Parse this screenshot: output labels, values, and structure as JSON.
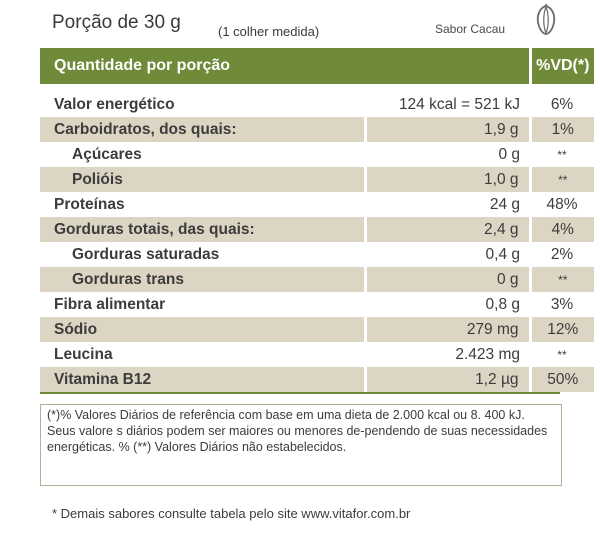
{
  "header": {
    "portion": "Porção de 30 g",
    "portion_detail": "(1 colher medida)",
    "flavor": "Sabor Cacau",
    "flavor_icon": "cacao-pod-icon"
  },
  "table": {
    "head_label": "Quantidade por porção",
    "head_vd": "%VD(*)",
    "rows": [
      {
        "label": "Valor energético",
        "amount": "124 kcal = 521 kJ",
        "vd": "6%"
      },
      {
        "label": "Carboidratos, dos quais:",
        "amount": "1,9 g",
        "vd": "1%"
      },
      {
        "label": "Açúcares",
        "amount": "0 g",
        "vd": "**"
      },
      {
        "label": "Polióis",
        "amount": "1,0 g",
        "vd": "**"
      },
      {
        "label": "Proteínas",
        "amount": "24 g",
        "vd": "48%"
      },
      {
        "label": "Gorduras totais, das quais:",
        "amount": "2,4 g",
        "vd": "4%"
      },
      {
        "label": "Gorduras saturadas",
        "amount": "0,4 g",
        "vd": "2%"
      },
      {
        "label": "Gorduras trans",
        "amount": "0 g",
        "vd": "**"
      },
      {
        "label": "Fibra alimentar",
        "amount": "0,8 g",
        "vd": "3%"
      },
      {
        "label": "Sódio",
        "amount": "279 mg",
        "vd": "12%"
      },
      {
        "label": "Leucina",
        "amount": "2.423 mg",
        "vd": "**"
      },
      {
        "label": "Vitamina B12",
        "amount": "1,2 µg",
        "vd": "50%"
      }
    ]
  },
  "footnote": "(*)% Valores Diários de referência com base em uma dieta de 2.000 kcal ou 8. 400 kJ. Seus valore s diários podem ser maiores ou menores de-pendendo de suas necessidades energéticas. % (**) Valores Diários não estabelecidos.",
  "bottom_note": "* Demais sabores consulte tabela pelo site www.vitafor.com.br",
  "colors": {
    "header_green": "#6f8a38",
    "row_shade": "#ddd5c4",
    "text": "#3a3a3a",
    "border": "#b8ad96"
  }
}
